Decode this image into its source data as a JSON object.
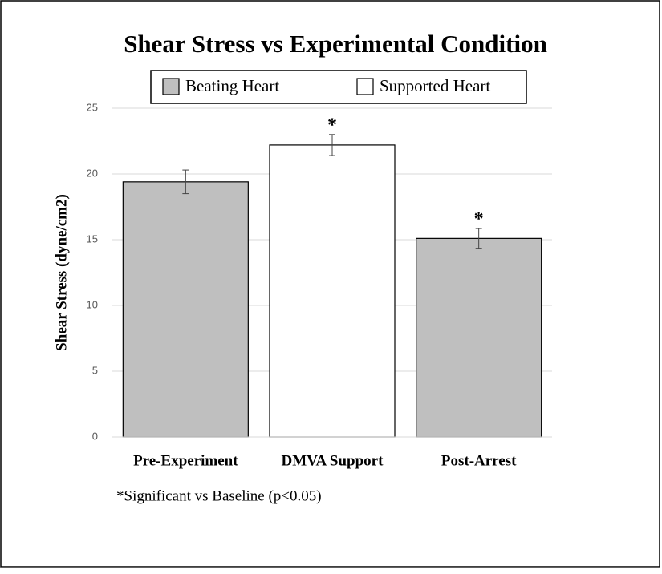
{
  "chart_data": {
    "type": "bar",
    "title": "Shear Stress vs Experimental Condition",
    "y_label": "Shear Stress (dyne/cm2)",
    "categories": [
      "Pre-Experiment",
      "DMVA Support",
      "Post-Arrest"
    ],
    "series": [
      {
        "name": "Beating Heart",
        "color": "#bfbfbf",
        "values": [
          19.4,
          null,
          15.1
        ],
        "errors": [
          0.9,
          null,
          0.75
        ]
      },
      {
        "name": "Supported Heart",
        "color": "#ffffff",
        "values": [
          null,
          22.2,
          null
        ],
        "errors": [
          null,
          0.8,
          null
        ]
      }
    ],
    "significance": [
      null,
      "*",
      "*"
    ],
    "footnote": "*Significant vs Baseline (p<0.05)",
    "ylim": [
      0,
      25
    ],
    "yticks": [
      0,
      5,
      10,
      15,
      20,
      25
    ],
    "grid": true,
    "legend": "top"
  }
}
